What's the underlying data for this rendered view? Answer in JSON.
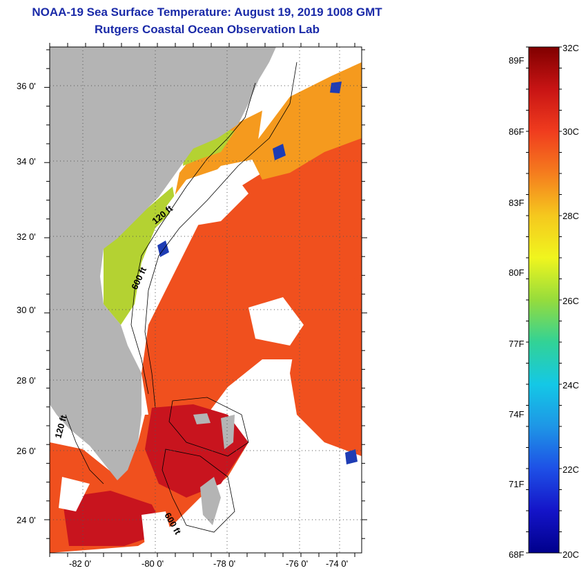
{
  "header": {
    "title": "NOAA-19 Sea Surface Temperature:  August 19, 2019 1008 GMT",
    "subtitle": "Rutgers Coastal Ocean Observation Lab"
  },
  "map": {
    "lat_ticks": [
      "36 0'",
      "34 0'",
      "32 0'",
      "30 0'",
      "28 0'",
      "26 0'",
      "24 0'"
    ],
    "lon_ticks": [
      "-82 0'",
      "-80 0'",
      "-78 0'",
      "-76 0'",
      "-74 0'"
    ],
    "contour_labels": [
      "120 ft",
      "600 ft",
      "120 ft",
      "600 ft"
    ],
    "colors": {
      "land": "#b4b4b4",
      "cloud": "#ffffff",
      "warm_water": "#f0501e",
      "hot_water": "#c8141e",
      "moderate_water": "#f59a1e",
      "cool_water": "#b4d232",
      "cold_patch": "#1e3cb4"
    }
  },
  "colorbar": {
    "fahrenheit_labels": [
      "89F",
      "86F",
      "83F",
      "80F",
      "77F",
      "74F",
      "71F",
      "68F"
    ],
    "celsius_labels": [
      "32C",
      "30C",
      "28C",
      "26C",
      "24C",
      "22C",
      "20C"
    ],
    "gradient_stops": [
      "#800000",
      "#c81414",
      "#f03c1e",
      "#f57d1e",
      "#f5c81e",
      "#f0f51e",
      "#96dc3c",
      "#32d296",
      "#14c8e6",
      "#1e96e6",
      "#1e50e6",
      "#1414c8",
      "#00008c"
    ]
  }
}
